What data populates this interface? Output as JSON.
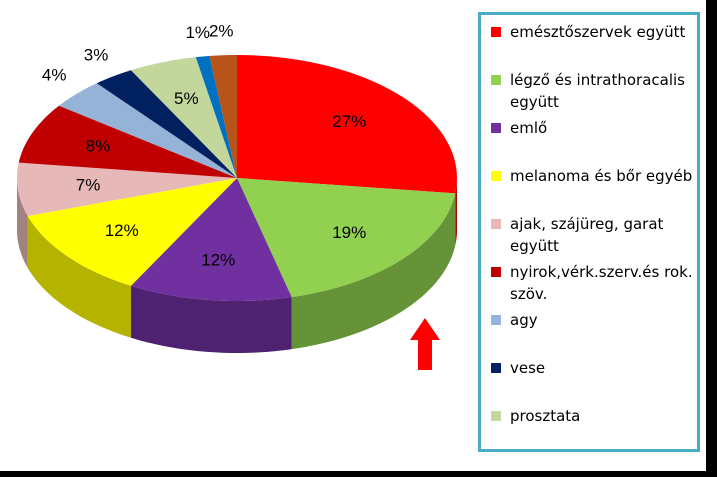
{
  "chart_data": {
    "type": "pie",
    "categories": [
      "emésztőszervek együtt",
      "légző és intrathoracalis együtt",
      "emlő",
      "melanoma és bőr egyéb",
      "ajak, szájüreg, garat együtt",
      "nyirok,vérk.szerv.és rok. szöv.",
      "agy",
      "vese",
      "prosztata",
      null,
      null
    ],
    "values": [
      27,
      19,
      12,
      12,
      7,
      8,
      4,
      3,
      5,
      1,
      2
    ],
    "value_labels": [
      "27%",
      "19%",
      "12%",
      "12%",
      "7%",
      "8%",
      "4%",
      "3%",
      "5%",
      "1%",
      "2%"
    ],
    "colors": [
      "#ff0000",
      "#92d050",
      "#7030a0",
      "#ffff00",
      "#e6b9b8",
      "#c00000",
      "#95b3d7",
      "#002060",
      "#c3d69b",
      "#0070c0",
      "#b8541a"
    ]
  }
}
